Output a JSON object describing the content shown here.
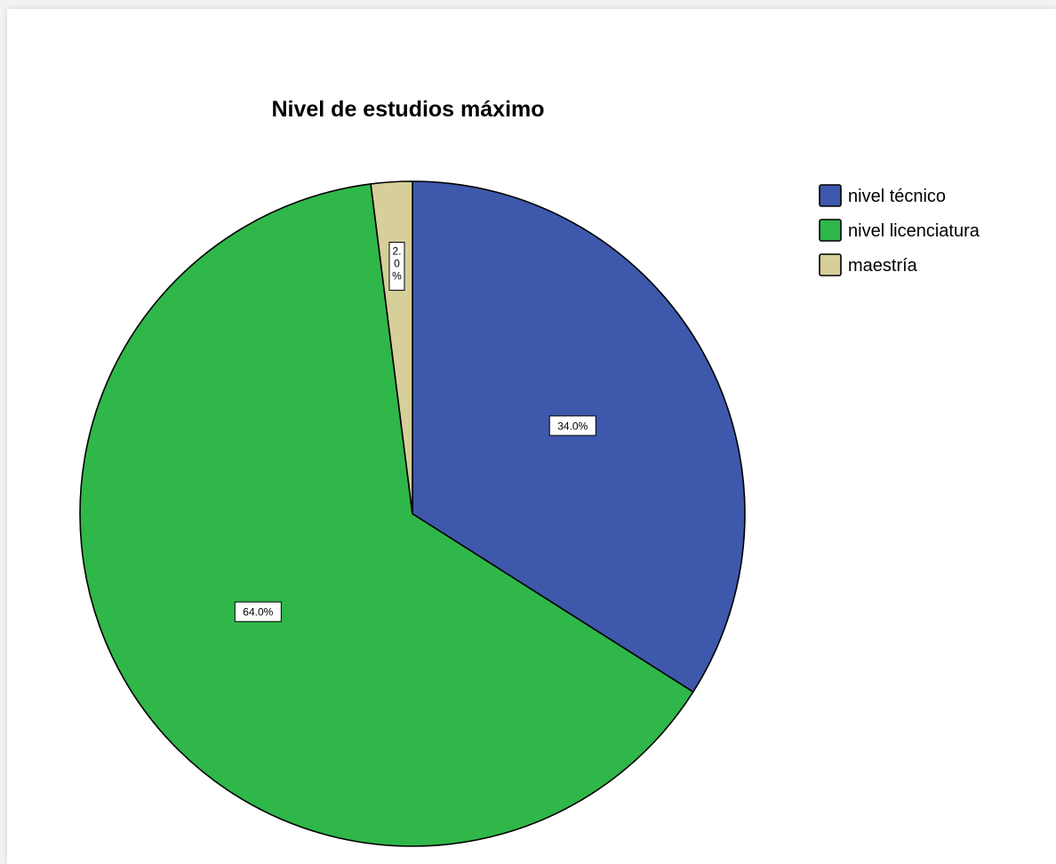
{
  "chart_data": {
    "type": "pie",
    "title": "Nivel de estudios máximo",
    "categories": [
      "nivel técnico",
      "nivel licenciatura",
      "maestría"
    ],
    "values": [
      34.0,
      64.0,
      2.0
    ],
    "labels": [
      "34.0%",
      "64.0%",
      "2.0%"
    ],
    "colors": [
      "#3e58ac",
      "#2fb74a",
      "#d6cf9a"
    ],
    "legend_position": "top-right",
    "start_angle": "12 o'clock, clockwise"
  }
}
